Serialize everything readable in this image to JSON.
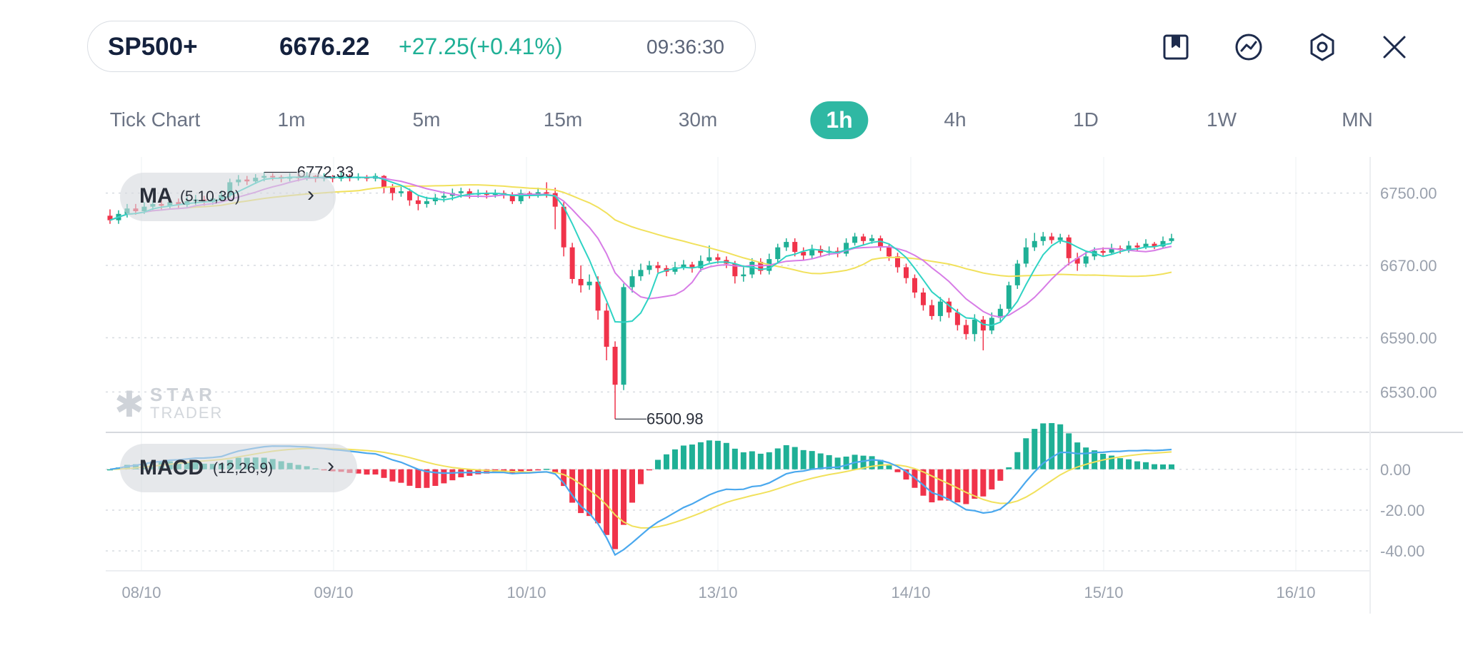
{
  "quote": {
    "symbol": "SP500+",
    "price": "6676.22",
    "change": "+27.25(+0.41%)",
    "time": "09:36:30"
  },
  "toolbar": {
    "icons": [
      "bookmark-icon",
      "indicator-icon",
      "settings-icon",
      "close-icon"
    ]
  },
  "timeframes": [
    {
      "label": "Tick Chart",
      "active": false
    },
    {
      "label": "1m",
      "active": false
    },
    {
      "label": "5m",
      "active": false
    },
    {
      "label": "15m",
      "active": false
    },
    {
      "label": "30m",
      "active": false
    },
    {
      "label": "1h",
      "active": true
    },
    {
      "label": "4h",
      "active": false
    },
    {
      "label": "1D",
      "active": false
    },
    {
      "label": "1W",
      "active": false
    },
    {
      "label": "MN",
      "active": false
    }
  ],
  "ma_legend": {
    "name": "MA",
    "params": "(5,10,30)",
    "arrow": "›"
  },
  "macd_legend": {
    "name": "MACD",
    "params": "(12,26,9)",
    "arrow": "›"
  },
  "watermark": {
    "line1": "STAR",
    "line2": "TRADER"
  },
  "colors": {
    "up": "#1fb096",
    "down": "#f0334a",
    "ma5": "#2fd3c4",
    "ma10": "#d77ce6",
    "ma30": "#f1e15c",
    "dif": "#4aa8ee",
    "dea": "#f1e15c",
    "accent": "#2fb8a3"
  },
  "chart_data": {
    "type": "candlestick",
    "price_ticks": [
      "6750.00",
      "6670.00",
      "6590.00",
      "6530.00"
    ],
    "macd_ticks": [
      "0.00",
      "-20.00",
      "-40.00"
    ],
    "date_labels": [
      "08/10",
      "09/10",
      "10/10",
      "13/10",
      "14/10",
      "15/10",
      "16/10"
    ],
    "high_label": "6772.33",
    "low_label": "6500.98",
    "candles": [
      [
        6725,
        6720,
        6732,
        6716
      ],
      [
        6720,
        6727,
        6731,
        6716
      ],
      [
        6727,
        6733,
        6738,
        6723
      ],
      [
        6733,
        6730,
        6738,
        6726
      ],
      [
        6730,
        6735,
        6740,
        6727
      ],
      [
        6735,
        6738,
        6742,
        6731
      ],
      [
        6738,
        6736,
        6742,
        6731
      ],
      [
        6736,
        6740,
        6745,
        6733
      ],
      [
        6740,
        6737,
        6744,
        6733
      ],
      [
        6737,
        6741,
        6746,
        6734
      ],
      [
        6741,
        6743,
        6748,
        6737
      ],
      [
        6743,
        6740,
        6747,
        6736
      ],
      [
        6740,
        6744,
        6750,
        6737
      ],
      [
        6744,
        6748,
        6753,
        6740
      ],
      [
        6748,
        6762,
        6766,
        6745
      ],
      [
        6762,
        6765,
        6770,
        6758
      ],
      [
        6765,
        6763,
        6769,
        6759
      ],
      [
        6763,
        6767,
        6771,
        6760
      ],
      [
        6767,
        6769,
        6773,
        6763
      ],
      [
        6769,
        6768,
        6772,
        6764
      ],
      [
        6768,
        6766,
        6770,
        6762
      ],
      [
        6766,
        6768,
        6772,
        6763
      ],
      [
        6768,
        6767,
        6771,
        6763
      ],
      [
        6767,
        6769,
        6773,
        6764
      ],
      [
        6769,
        6766,
        6770,
        6762
      ],
      [
        6766,
        6768,
        6772,
        6763
      ],
      [
        6768,
        6766,
        6770,
        6762
      ],
      [
        6766,
        6769,
        6773,
        6763
      ],
      [
        6769,
        6767,
        6771,
        6763
      ],
      [
        6767,
        6768,
        6772,
        6764
      ],
      [
        6768,
        6766,
        6770,
        6763
      ],
      [
        6766,
        6769,
        6772,
        6763
      ],
      [
        6769,
        6756,
        6770,
        6750
      ],
      [
        6756,
        6750,
        6760,
        6742
      ],
      [
        6750,
        6752,
        6758,
        6746
      ],
      [
        6752,
        6742,
        6755,
        6736
      ],
      [
        6742,
        6738,
        6747,
        6731
      ],
      [
        6738,
        6741,
        6746,
        6734
      ],
      [
        6741,
        6745,
        6749,
        6737
      ],
      [
        6745,
        6747,
        6752,
        6740
      ],
      [
        6747,
        6750,
        6755,
        6742
      ],
      [
        6750,
        6752,
        6756,
        6745
      ],
      [
        6752,
        6749,
        6755,
        6744
      ],
      [
        6749,
        6750,
        6754,
        6745
      ],
      [
        6750,
        6748,
        6753,
        6744
      ],
      [
        6748,
        6750,
        6754,
        6745
      ],
      [
        6750,
        6748,
        6753,
        6744
      ],
      [
        6748,
        6741,
        6751,
        6738
      ],
      [
        6741,
        6750,
        6754,
        6738
      ],
      [
        6750,
        6748,
        6752,
        6744
      ],
      [
        6748,
        6751,
        6756,
        6745
      ],
      [
        6751,
        6750,
        6762,
        6745
      ],
      [
        6750,
        6735,
        6756,
        6710
      ],
      [
        6735,
        6690,
        6740,
        6680
      ],
      [
        6690,
        6655,
        6695,
        6650
      ],
      [
        6655,
        6648,
        6670,
        6640
      ],
      [
        6648,
        6652,
        6660,
        6643
      ],
      [
        6652,
        6620,
        6658,
        6610
      ],
      [
        6620,
        6580,
        6628,
        6565
      ],
      [
        6580,
        6538,
        6586,
        6500
      ],
      [
        6538,
        6646,
        6650,
        6532
      ],
      [
        6646,
        6658,
        6665,
        6640
      ],
      [
        6658,
        6665,
        6672,
        6653
      ],
      [
        6665,
        6670,
        6675,
        6660
      ],
      [
        6670,
        6667,
        6674,
        6662
      ],
      [
        6667,
        6663,
        6670,
        6658
      ],
      [
        6663,
        6668,
        6674,
        6660
      ],
      [
        6668,
        6671,
        6676,
        6665
      ],
      [
        6671,
        6667,
        6674,
        6662
      ],
      [
        6667,
        6675,
        6681,
        6663
      ],
      [
        6675,
        6679,
        6692,
        6673
      ],
      [
        6679,
        6676,
        6683,
        6672
      ],
      [
        6676,
        6672,
        6680,
        6667
      ],
      [
        6672,
        6658,
        6675,
        6650
      ],
      [
        6658,
        6660,
        6668,
        6652
      ],
      [
        6660,
        6674,
        6678,
        6656
      ],
      [
        6674,
        6664,
        6678,
        6660
      ],
      [
        6664,
        6677,
        6683,
        6660
      ],
      [
        6677,
        6690,
        6694,
        6673
      ],
      [
        6690,
        6696,
        6700,
        6686
      ],
      [
        6696,
        6685,
        6700,
        6680
      ],
      [
        6685,
        6681,
        6690,
        6676
      ],
      [
        6681,
        6688,
        6693,
        6678
      ],
      [
        6688,
        6684,
        6692,
        6679
      ],
      [
        6684,
        6686,
        6691,
        6681
      ],
      [
        6686,
        6683,
        6690,
        6679
      ],
      [
        6683,
        6695,
        6700,
        6680
      ],
      [
        6695,
        6702,
        6706,
        6692
      ],
      [
        6702,
        6697,
        6705,
        6693
      ],
      [
        6697,
        6700,
        6704,
        6694
      ],
      [
        6700,
        6690,
        6703,
        6686
      ],
      [
        6690,
        6680,
        6694,
        6675
      ],
      [
        6680,
        6668,
        6684,
        6662
      ],
      [
        6668,
        6656,
        6672,
        6650
      ],
      [
        6656,
        6640,
        6660,
        6634
      ],
      [
        6640,
        6626,
        6645,
        6620
      ],
      [
        6626,
        6614,
        6632,
        6610
      ],
      [
        6614,
        6630,
        6635,
        6608
      ],
      [
        6630,
        6618,
        6634,
        6612
      ],
      [
        6618,
        6604,
        6622,
        6598
      ],
      [
        6604,
        6594,
        6610,
        6588
      ],
      [
        6594,
        6610,
        6616,
        6586
      ],
      [
        6610,
        6598,
        6614,
        6576
      ],
      [
        6598,
        6612,
        6618,
        6594
      ],
      [
        6612,
        6622,
        6627,
        6608
      ],
      [
        6622,
        6648,
        6652,
        6618
      ],
      [
        6648,
        6672,
        6676,
        6644
      ],
      [
        6672,
        6690,
        6700,
        6668
      ],
      [
        6690,
        6697,
        6706,
        6686
      ],
      [
        6697,
        6702,
        6707,
        6692
      ],
      [
        6702,
        6698,
        6706,
        6694
      ],
      [
        6698,
        6701,
        6705,
        6694
      ],
      [
        6701,
        6678,
        6704,
        6670
      ],
      [
        6678,
        6672,
        6684,
        6664
      ],
      [
        6672,
        6680,
        6686,
        6668
      ],
      [
        6680,
        6686,
        6690,
        6676
      ],
      [
        6686,
        6684,
        6690,
        6680
      ],
      [
        6684,
        6689,
        6694,
        6682
      ],
      [
        6689,
        6687,
        6692,
        6683
      ],
      [
        6687,
        6692,
        6697,
        6684
      ],
      [
        6692,
        6690,
        6695,
        6686
      ],
      [
        6690,
        6694,
        6699,
        6688
      ],
      [
        6694,
        6691,
        6696,
        6688
      ],
      [
        6691,
        6697,
        6702,
        6689
      ],
      [
        6697,
        6700,
        6705,
        6695
      ]
    ]
  }
}
